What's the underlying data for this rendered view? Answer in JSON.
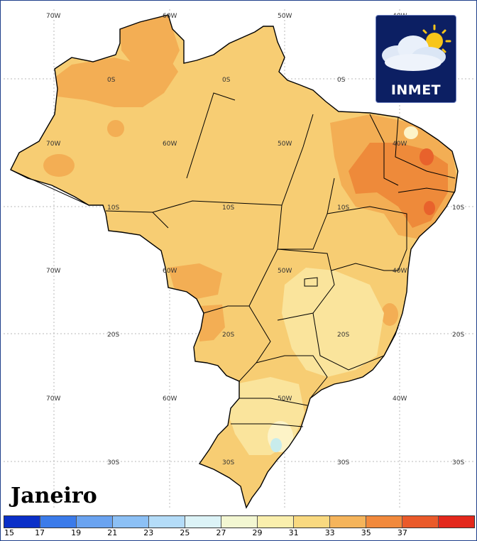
{
  "title": "Janeiro",
  "logo": {
    "text": "INMET"
  },
  "grid_labels": {
    "row1": [
      "70W",
      "60W",
      "50W",
      "40W"
    ],
    "row2": [
      "0S",
      "0S",
      "0S"
    ],
    "row3": [
      "70W",
      "60W",
      "50W",
      "40W"
    ],
    "row4": [
      "10S",
      "10S",
      "10S",
      "10S"
    ],
    "row5": [
      "70W",
      "60W",
      "50W",
      "40W"
    ],
    "row6": [
      "20S",
      "20S",
      "20S",
      "20S"
    ],
    "row7": [
      "70W",
      "60W",
      "50W",
      "40W"
    ],
    "row8": [
      "30S",
      "30S",
      "30S",
      "30S"
    ]
  },
  "legend": {
    "ticks": [
      "15",
      "17",
      "19",
      "21",
      "23",
      "25",
      "27",
      "29",
      "31",
      "33",
      "35",
      "37"
    ],
    "colors": [
      "#0a2fc8",
      "#3b7bea",
      "#6aa3f0",
      "#8cc0f5",
      "#b4dcf8",
      "#dcf3f7",
      "#f3f7d2",
      "#faefad",
      "#f9d980",
      "#f5b45b",
      "#f1893c",
      "#ea5a2a",
      "#e3281c"
    ]
  },
  "map_colors": {
    "base": "#f7cd73",
    "warm": "#f3ae54",
    "hot": "#ee8a3a",
    "very_hot": "#e8622c",
    "cool": "#fae49c",
    "coolest": "#fdf3c7",
    "pale": "#c8ecec"
  }
}
